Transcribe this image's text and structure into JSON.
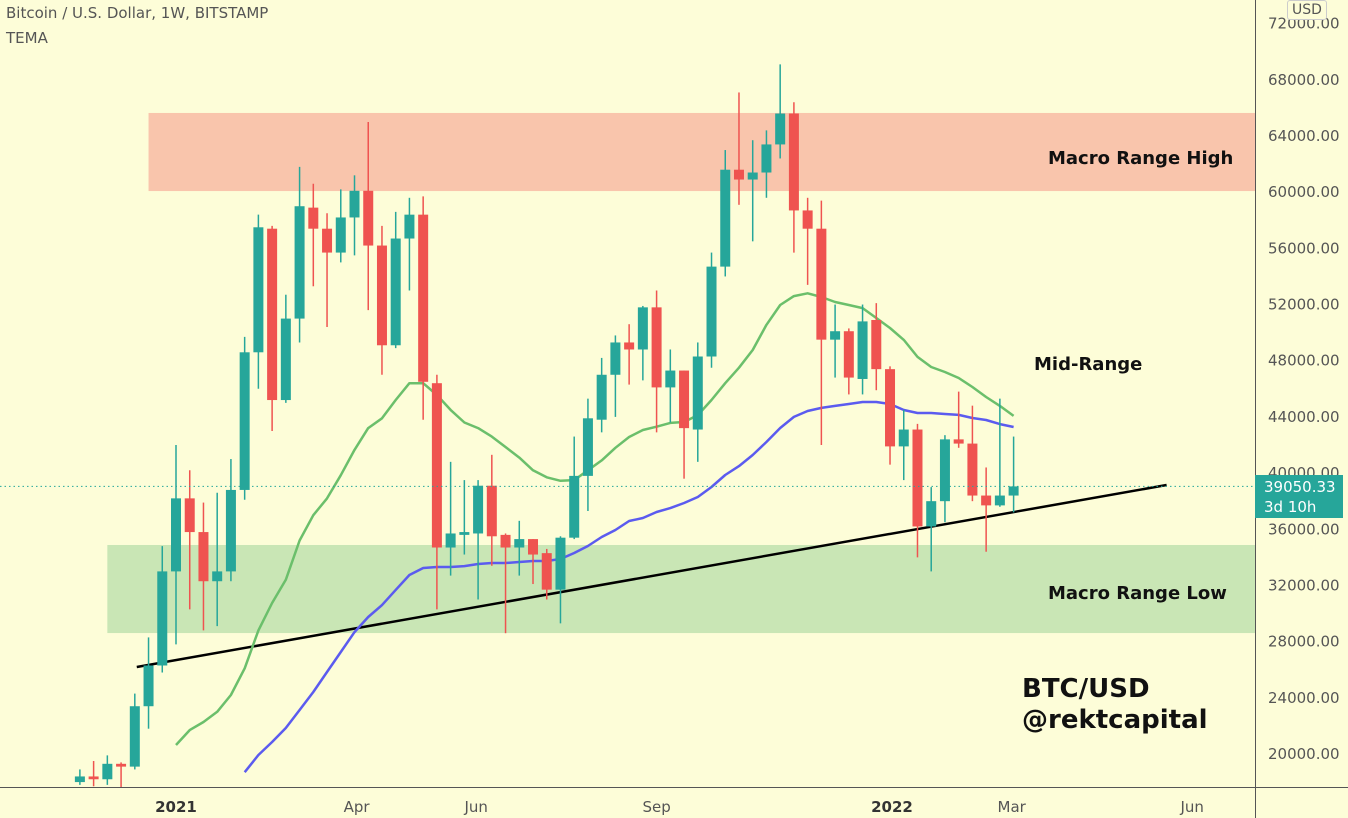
{
  "header": {
    "title": "Bitcoin / U.S. Dollar, 1W, BITSTAMP",
    "indicator": "TEMA",
    "currency": "USD"
  },
  "price_label": {
    "value": "39050.33",
    "countdown": "3d 10h"
  },
  "colors": {
    "up": "#26a69a",
    "down": "#ef5350",
    "ma_fast": "#6bbf6b",
    "ma_slow": "#5b5bef",
    "zone_high": "#f9c5ac",
    "zone_low": "#c9e6b5",
    "background": "#fdfdd8"
  },
  "chart_data": {
    "type": "candlestick",
    "title": "Bitcoin / U.S. Dollar, 1W, BITSTAMP",
    "ylim": [
      17600,
      73000
    ],
    "y_ticks": [
      "20000.00",
      "24000.00",
      "28000.00",
      "32000.00",
      "36000.00",
      "40000.00",
      "44000.00",
      "48000.00",
      "52000.00",
      "56000.00",
      "60000.00",
      "64000.00",
      "68000.00",
      "72000.00"
    ],
    "x_ticks": [
      {
        "date": "2021-01-01",
        "label": "2021",
        "bold": true
      },
      {
        "date": "2021-04-01",
        "label": "Apr"
      },
      {
        "date": "2021-06-01",
        "label": "Jun"
      },
      {
        "date": "2021-09-01",
        "label": "Sep"
      },
      {
        "date": "2022-01-01",
        "label": "2022",
        "bold": true
      },
      {
        "date": "2022-03-01",
        "label": "Mar"
      },
      {
        "date": "2022-06-01",
        "label": "Jun"
      }
    ],
    "last_price": 39050.33,
    "candles": [
      [
        "2020-11-13",
        18000,
        18900,
        17800,
        18400
      ],
      [
        "2020-11-20",
        18400,
        19500,
        17700,
        18200
      ],
      [
        "2020-11-27",
        18200,
        19900,
        17800,
        19300
      ],
      [
        "2020-12-04",
        19300,
        19400,
        17600,
        19100
      ],
      [
        "2020-12-11",
        19100,
        24300,
        18900,
        23400
      ],
      [
        "2020-12-18",
        23400,
        28300,
        21800,
        26300
      ],
      [
        "2020-12-25",
        26300,
        34800,
        25800,
        33000
      ],
      [
        "2021-01-01",
        33000,
        42000,
        27800,
        38200
      ],
      [
        "2021-01-08",
        38200,
        40200,
        30300,
        35800
      ],
      [
        "2021-01-15",
        35800,
        37900,
        28800,
        32300
      ],
      [
        "2021-01-22",
        32300,
        38600,
        29100,
        33000
      ],
      [
        "2021-01-29",
        33000,
        41000,
        32300,
        38800
      ],
      [
        "2021-02-05",
        38800,
        49700,
        38100,
        48600
      ],
      [
        "2021-02-12",
        48600,
        58400,
        46000,
        57500
      ],
      [
        "2021-02-19",
        57400,
        57600,
        43000,
        45200
      ],
      [
        "2021-02-26",
        45200,
        52700,
        45000,
        51000
      ],
      [
        "2021-03-05",
        51000,
        61800,
        49300,
        59000
      ],
      [
        "2021-03-12",
        58900,
        60600,
        53300,
        57400
      ],
      [
        "2021-03-19",
        57400,
        58500,
        50400,
        55700
      ],
      [
        "2021-03-26",
        55700,
        60200,
        55000,
        58200
      ],
      [
        "2021-04-02",
        58200,
        61200,
        55500,
        60100
      ],
      [
        "2021-04-09",
        60100,
        65000,
        51600,
        56200
      ],
      [
        "2021-04-16",
        56200,
        57600,
        47000,
        49100
      ],
      [
        "2021-04-23",
        49100,
        58600,
        48900,
        56700
      ],
      [
        "2021-04-30",
        56700,
        59600,
        53000,
        58400
      ],
      [
        "2021-05-07",
        58400,
        59700,
        43800,
        46500
      ],
      [
        "2021-05-14",
        46400,
        47000,
        30300,
        34700
      ],
      [
        "2021-05-21",
        34700,
        40800,
        32700,
        35700
      ],
      [
        "2021-05-28",
        35600,
        39500,
        34200,
        35800
      ],
      [
        "2021-06-04",
        35700,
        39500,
        31000,
        39100
      ],
      [
        "2021-06-11",
        39100,
        41300,
        33400,
        35500
      ],
      [
        "2021-06-18",
        35600,
        35700,
        28600,
        34700
      ],
      [
        "2021-06-25",
        34700,
        36600,
        32700,
        35300
      ],
      [
        "2021-07-02",
        35300,
        35300,
        32100,
        34200
      ],
      [
        "2021-07-09",
        34300,
        34600,
        31000,
        31700
      ],
      [
        "2021-07-16",
        31700,
        35500,
        29300,
        35400
      ],
      [
        "2021-07-23",
        35400,
        42600,
        35300,
        39800
      ],
      [
        "2021-07-30",
        39800,
        45300,
        37300,
        43900
      ],
      [
        "2021-08-06",
        43800,
        48200,
        42900,
        47000
      ],
      [
        "2021-08-13",
        47000,
        49800,
        44000,
        49300
      ],
      [
        "2021-08-20",
        49300,
        50600,
        46300,
        48800
      ],
      [
        "2021-08-27",
        48800,
        51900,
        46600,
        51800
      ],
      [
        "2021-09-03",
        51800,
        53000,
        42900,
        46100
      ],
      [
        "2021-09-10",
        46100,
        48800,
        43600,
        47300
      ],
      [
        "2021-09-17",
        47300,
        47300,
        39600,
        43200
      ],
      [
        "2021-09-24",
        43100,
        49300,
        40800,
        48300
      ],
      [
        "2021-10-01",
        48300,
        55700,
        47500,
        54700
      ],
      [
        "2021-10-08",
        54700,
        63000,
        54000,
        61600
      ],
      [
        "2021-10-15",
        61600,
        67100,
        59100,
        60900
      ],
      [
        "2021-10-22",
        60900,
        63700,
        56500,
        61400
      ],
      [
        "2021-10-29",
        61400,
        64400,
        59600,
        63400
      ],
      [
        "2021-11-05",
        63400,
        69100,
        62400,
        65600
      ],
      [
        "2021-11-12",
        65600,
        66400,
        55700,
        58700
      ],
      [
        "2021-11-19",
        58700,
        59600,
        53400,
        57400
      ],
      [
        "2021-11-26",
        57400,
        59400,
        42000,
        49500
      ],
      [
        "2021-12-03",
        49500,
        52000,
        46800,
        50100
      ],
      [
        "2021-12-10",
        50100,
        50300,
        45600,
        46800
      ],
      [
        "2021-12-17",
        46700,
        52000,
        45600,
        50800
      ],
      [
        "2021-12-24",
        50900,
        52100,
        45900,
        47400
      ],
      [
        "2021-12-31",
        47400,
        47600,
        40600,
        41900
      ],
      [
        "2022-01-07",
        41900,
        44500,
        39500,
        43100
      ],
      [
        "2022-01-14",
        43100,
        43500,
        34000,
        36200
      ],
      [
        "2022-01-21",
        36200,
        39000,
        33000,
        38000
      ],
      [
        "2022-01-28",
        38000,
        42700,
        36500,
        42400
      ],
      [
        "2022-02-04",
        42400,
        45800,
        41800,
        42100
      ],
      [
        "2022-02-11",
        42100,
        44800,
        38000,
        38400
      ],
      [
        "2022-02-18",
        38400,
        40400,
        34400,
        37700
      ],
      [
        "2022-02-25",
        37700,
        45300,
        37600,
        38400
      ],
      [
        "2022-03-04",
        38400,
        42600,
        37200,
        39050.33
      ]
    ],
    "series": [
      {
        "kind": "ma_fast",
        "values": [
          null,
          null,
          null,
          null,
          null,
          null,
          null,
          20640,
          21700,
          22280,
          23000,
          24200,
          26100,
          28800,
          30750,
          32400,
          35200,
          37000,
          38200,
          39850,
          41650,
          43200,
          43900,
          45200,
          46400,
          46400,
          45560,
          44500,
          43600,
          43200,
          42600,
          41860,
          41100,
          40200,
          39700,
          39450,
          39500,
          40200,
          40900,
          41800,
          42570,
          43070,
          43300,
          43570,
          43640,
          44130,
          45200,
          46400,
          47500,
          48760,
          50550,
          51970,
          52600,
          52800,
          52540,
          52180,
          51970,
          51750,
          51040,
          50330,
          49480,
          48270,
          47550,
          47200,
          46770,
          46130,
          45420,
          44780,
          44070
        ]
      },
      {
        "kind": "ma_slow",
        "values": [
          null,
          null,
          null,
          null,
          null,
          null,
          null,
          null,
          null,
          null,
          null,
          null,
          18700,
          19930,
          20850,
          21850,
          23130,
          24410,
          25840,
          27260,
          28680,
          29750,
          30600,
          31680,
          32740,
          33240,
          33310,
          33310,
          33380,
          33530,
          33600,
          33600,
          33670,
          33740,
          33740,
          33880,
          34310,
          34810,
          35450,
          35950,
          36590,
          36800,
          37230,
          37510,
          37870,
          38300,
          39010,
          39860,
          40500,
          41290,
          42210,
          43210,
          44000,
          44420,
          44640,
          44780,
          44920,
          45060,
          45060,
          44920,
          44490,
          44280,
          44280,
          44210,
          44140,
          43920,
          43780,
          43490,
          43280
        ]
      }
    ],
    "zones": [
      {
        "name": "Macro Range High",
        "from_date": "2020-12-18",
        "low": 60080,
        "high": 65640
      },
      {
        "name": "Macro Range Low",
        "from_date": "2020-11-27",
        "low": 28610,
        "high": 34880
      }
    ],
    "trendline": [
      [
        "2020-12-12",
        26190
      ],
      [
        "2022-05-21",
        39150
      ]
    ],
    "annotations": {
      "high": "Macro Range High",
      "mid": "Mid-Range",
      "low": "Macro Range Low",
      "symbol": "BTC/USD",
      "author": "@rektcapital"
    }
  }
}
